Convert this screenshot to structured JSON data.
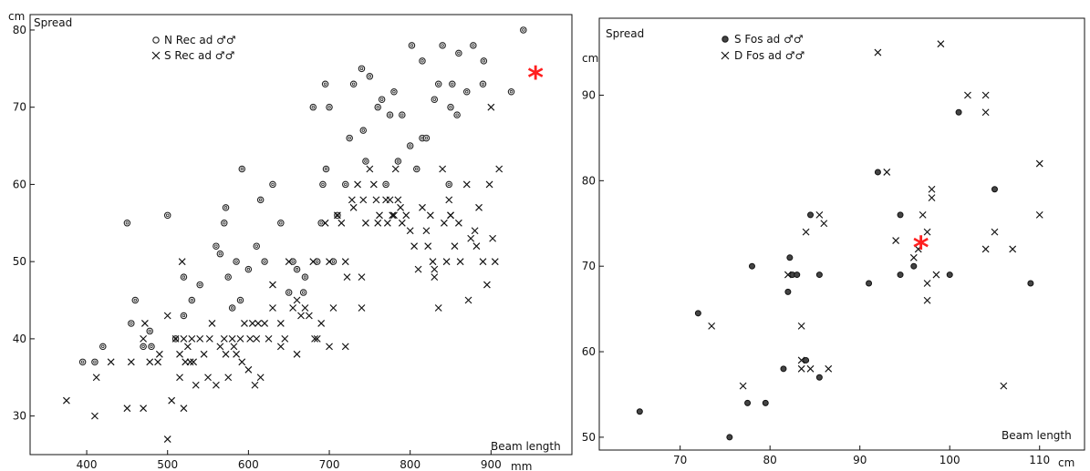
{
  "chart_data": [
    {
      "type": "scatter",
      "title": "",
      "ylabel": "Spread",
      "y_unit": "cm",
      "xlabel": "Beam length",
      "x_unit": "mm",
      "xlim": [
        330,
        1000
      ],
      "ylim": [
        25,
        82
      ],
      "xticks": [
        400,
        500,
        600,
        700,
        800,
        900
      ],
      "yticks": [
        30,
        40,
        50,
        60,
        70,
        80
      ],
      "grid": false,
      "legend": "top-left",
      "series": [
        {
          "name": "N Rec ad ♂♂",
          "marker": "open-circle",
          "points": [
            [
              395,
              37
            ],
            [
              410,
              37
            ],
            [
              420,
              39
            ],
            [
              450,
              55
            ],
            [
              455,
              42
            ],
            [
              460,
              45
            ],
            [
              470,
              39
            ],
            [
              478,
              41
            ],
            [
              480,
              39
            ],
            [
              500,
              56
            ],
            [
              510,
              40
            ],
            [
              520,
              43
            ],
            [
              520,
              48
            ],
            [
              530,
              45
            ],
            [
              540,
              47
            ],
            [
              560,
              52
            ],
            [
              565,
              51
            ],
            [
              570,
              55
            ],
            [
              572,
              57
            ],
            [
              575,
              48
            ],
            [
              580,
              44
            ],
            [
              585,
              50
            ],
            [
              590,
              45
            ],
            [
              592,
              62
            ],
            [
              600,
              49
            ],
            [
              610,
              52
            ],
            [
              615,
              58
            ],
            [
              620,
              50
            ],
            [
              630,
              60
            ],
            [
              640,
              55
            ],
            [
              650,
              46
            ],
            [
              655,
              50
            ],
            [
              660,
              49
            ],
            [
              668,
              46
            ],
            [
              670,
              48
            ],
            [
              680,
              70
            ],
            [
              685,
              50
            ],
            [
              690,
              55
            ],
            [
              692,
              60
            ],
            [
              695,
              73
            ],
            [
              696,
              62
            ],
            [
              700,
              70
            ],
            [
              705,
              50
            ],
            [
              710,
              56
            ],
            [
              720,
              60
            ],
            [
              725,
              66
            ],
            [
              730,
              73
            ],
            [
              740,
              75
            ],
            [
              742,
              67
            ],
            [
              745,
              63
            ],
            [
              750,
              74
            ],
            [
              760,
              70
            ],
            [
              765,
              71
            ],
            [
              770,
              60
            ],
            [
              775,
              69
            ],
            [
              780,
              72
            ],
            [
              785,
              63
            ],
            [
              790,
              69
            ],
            [
              800,
              65
            ],
            [
              802,
              78
            ],
            [
              808,
              62
            ],
            [
              815,
              76
            ],
            [
              815,
              66
            ],
            [
              820,
              66
            ],
            [
              830,
              71
            ],
            [
              835,
              73
            ],
            [
              840,
              78
            ],
            [
              848,
              60
            ],
            [
              850,
              70
            ],
            [
              852,
              73
            ],
            [
              858,
              69
            ],
            [
              860,
              77
            ],
            [
              870,
              72
            ],
            [
              878,
              78
            ],
            [
              890,
              73
            ],
            [
              891,
              76
            ],
            [
              925,
              72
            ],
            [
              940,
              80
            ]
          ]
        },
        {
          "name": "S Rec ad ♂♂",
          "marker": "cross",
          "points": [
            [
              375,
              32
            ],
            [
              410,
              30
            ],
            [
              412,
              35
            ],
            [
              430,
              37
            ],
            [
              450,
              31
            ],
            [
              455,
              37
            ],
            [
              470,
              40
            ],
            [
              470,
              31
            ],
            [
              472,
              42
            ],
            [
              478,
              37
            ],
            [
              488,
              37
            ],
            [
              490,
              38
            ],
            [
              500,
              27
            ],
            [
              500,
              43
            ],
            [
              505,
              32
            ],
            [
              510,
              40
            ],
            [
              515,
              38
            ],
            [
              515,
              35
            ],
            [
              518,
              50
            ],
            [
              520,
              31
            ],
            [
              520,
              40
            ],
            [
              522,
              37
            ],
            [
              525,
              39
            ],
            [
              528,
              37
            ],
            [
              530,
              40
            ],
            [
              532,
              37
            ],
            [
              535,
              34
            ],
            [
              540,
              40
            ],
            [
              545,
              38
            ],
            [
              550,
              35
            ],
            [
              552,
              40
            ],
            [
              555,
              42
            ],
            [
              560,
              34
            ],
            [
              565,
              39
            ],
            [
              570,
              40
            ],
            [
              572,
              38
            ],
            [
              575,
              35
            ],
            [
              580,
              40
            ],
            [
              582,
              39
            ],
            [
              585,
              38
            ],
            [
              590,
              40
            ],
            [
              592,
              37
            ],
            [
              595,
              42
            ],
            [
              600,
              36
            ],
            [
              602,
              40
            ],
            [
              605,
              42
            ],
            [
              608,
              34
            ],
            [
              610,
              40
            ],
            [
              612,
              42
            ],
            [
              615,
              35
            ],
            [
              620,
              42
            ],
            [
              625,
              40
            ],
            [
              630,
              44
            ],
            [
              630,
              47
            ],
            [
              640,
              39
            ],
            [
              645,
              40
            ],
            [
              650,
              50
            ],
            [
              655,
              44
            ],
            [
              660,
              45
            ],
            [
              665,
              43
            ],
            [
              670,
              44
            ],
            [
              675,
              43
            ],
            [
              680,
              50
            ],
            [
              682,
              40
            ],
            [
              685,
              40
            ],
            [
              690,
              42
            ],
            [
              695,
              55
            ],
            [
              700,
              50
            ],
            [
              705,
              44
            ],
            [
              710,
              56
            ],
            [
              715,
              55
            ],
            [
              720,
              50
            ],
            [
              722,
              48
            ],
            [
              728,
              58
            ],
            [
              730,
              57
            ],
            [
              735,
              60
            ],
            [
              740,
              48
            ],
            [
              742,
              58
            ],
            [
              745,
              55
            ],
            [
              750,
              62
            ],
            [
              755,
              60
            ],
            [
              758,
              58
            ],
            [
              760,
              55
            ],
            [
              762,
              56
            ],
            [
              770,
              58
            ],
            [
              772,
              55
            ],
            [
              775,
              58
            ],
            [
              778,
              56
            ],
            [
              780,
              56
            ],
            [
              782,
              62
            ],
            [
              785,
              58
            ],
            [
              788,
              57
            ],
            [
              790,
              55
            ],
            [
              795,
              56
            ],
            [
              800,
              54
            ],
            [
              805,
              52
            ],
            [
              810,
              49
            ],
            [
              815,
              57
            ],
            [
              820,
              54
            ],
            [
              822,
              52
            ],
            [
              825,
              56
            ],
            [
              828,
              50
            ],
            [
              830,
              48
            ],
            [
              835,
              44
            ],
            [
              840,
              62
            ],
            [
              842,
              55
            ],
            [
              845,
              50
            ],
            [
              848,
              58
            ],
            [
              850,
              56
            ],
            [
              855,
              52
            ],
            [
              860,
              55
            ],
            [
              862,
              50
            ],
            [
              870,
              60
            ],
            [
              872,
              45
            ],
            [
              875,
              53
            ],
            [
              880,
              54
            ],
            [
              882,
              52
            ],
            [
              885,
              57
            ],
            [
              890,
              50
            ],
            [
              895,
              47
            ],
            [
              898,
              60
            ],
            [
              900,
              70
            ],
            [
              902,
              53
            ],
            [
              905,
              50
            ],
            [
              910,
              62
            ],
            [
              850,
              56
            ],
            [
              830,
              49
            ],
            [
              740,
              44
            ],
            [
              720,
              39
            ],
            [
              700,
              39
            ],
            [
              660,
              38
            ],
            [
              640,
              42
            ]
          ]
        }
      ]
    },
    {
      "type": "scatter",
      "title": "",
      "ylabel": "Spread",
      "y_unit": "cm",
      "xlabel": "Beam length",
      "x_unit": "cm",
      "xlim": [
        61,
        115
      ],
      "ylim": [
        48.5,
        99
      ],
      "xticks": [
        70,
        80,
        90,
        100,
        110
      ],
      "yticks": [
        50,
        60,
        70,
        80,
        90
      ],
      "grid": false,
      "legend": "top-left",
      "series": [
        {
          "name": "S Fos ad ♂♂",
          "marker": "solid-circle",
          "points": [
            [
              65.5,
              53
            ],
            [
              72,
              64.5
            ],
            [
              75.5,
              50
            ],
            [
              77.5,
              54
            ],
            [
              78,
              70
            ],
            [
              79.5,
              54
            ],
            [
              81.5,
              58
            ],
            [
              82,
              67
            ],
            [
              82.2,
              71
            ],
            [
              82.5,
              69
            ],
            [
              83,
              69
            ],
            [
              84,
              59
            ],
            [
              84.5,
              76
            ],
            [
              85.5,
              57
            ],
            [
              85.5,
              69
            ],
            [
              91,
              68
            ],
            [
              92,
              81
            ],
            [
              94.5,
              76
            ],
            [
              94.5,
              69
            ],
            [
              96,
              70
            ],
            [
              100,
              69
            ],
            [
              101,
              88
            ],
            [
              105,
              79
            ],
            [
              109,
              68
            ]
          ]
        },
        {
          "name": "D Fos ad ♂♂",
          "marker": "cross",
          "points": [
            [
              73.5,
              63
            ],
            [
              77,
              56
            ],
            [
              82,
              69
            ],
            [
              83.5,
              63
            ],
            [
              83.5,
              59
            ],
            [
              83.5,
              58
            ],
            [
              84,
              74
            ],
            [
              84.5,
              58
            ],
            [
              85.5,
              76
            ],
            [
              86,
              75
            ],
            [
              86.5,
              58
            ],
            [
              92,
              95
            ],
            [
              93,
              81
            ],
            [
              94,
              73
            ],
            [
              96,
              71
            ],
            [
              96.5,
              72
            ],
            [
              97,
              76
            ],
            [
              97.5,
              74
            ],
            [
              97.5,
              68
            ],
            [
              97.5,
              66
            ],
            [
              98,
              79
            ],
            [
              98,
              78
            ],
            [
              98.5,
              69
            ],
            [
              99,
              96
            ],
            [
              102,
              90
            ],
            [
              104,
              90
            ],
            [
              104,
              88
            ],
            [
              104,
              72
            ],
            [
              105,
              74
            ],
            [
              106,
              56
            ],
            [
              107,
              72
            ],
            [
              110,
              82
            ],
            [
              110,
              76
            ]
          ]
        }
      ]
    }
  ],
  "annotations": [
    {
      "symbol": "*",
      "color": "#ff1f1f",
      "chart": 0,
      "x": 955,
      "y": 74
    },
    {
      "symbol": "*",
      "color": "#ff1f1f",
      "chart": 1,
      "x": 96.8,
      "y": 72.3
    }
  ]
}
